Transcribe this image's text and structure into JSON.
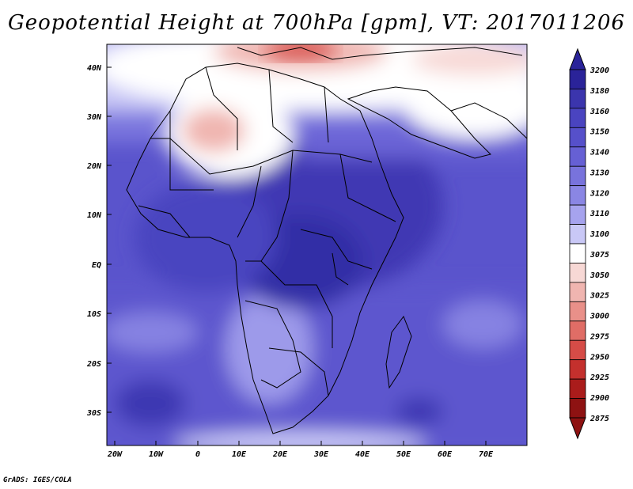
{
  "title": "Geopotential Height at 700hPa [gpm], VT: 2017011206",
  "credit": "GrADS: IGES/COLA",
  "map": {
    "lat_labels": [
      "40N",
      "30N",
      "20N",
      "10N",
      "EQ",
      "10S",
      "20S",
      "30S"
    ],
    "lon_labels": [
      "20W",
      "10W",
      "0",
      "10E",
      "20E",
      "30E",
      "40E",
      "50E",
      "60E",
      "70E"
    ]
  },
  "colorbar": {
    "levels": [
      "3200",
      "3180",
      "3160",
      "3150",
      "3140",
      "3130",
      "3120",
      "3110",
      "3100",
      "3075",
      "3050",
      "3025",
      "3000",
      "2975",
      "2950",
      "2925",
      "2900",
      "2875"
    ],
    "colors": [
      "#2a2399",
      "#3b35ad",
      "#4a44c0",
      "#5650ca",
      "#6660d4",
      "#7873dc",
      "#8a86e4",
      "#a6a3ee",
      "#c9c8f6",
      "#ffffff",
      "#f7d8d5",
      "#f0b5b0",
      "#e99089",
      "#e06d66",
      "#d64c47",
      "#c4302d",
      "#aa1c1b",
      "#8e1212"
    ]
  }
}
